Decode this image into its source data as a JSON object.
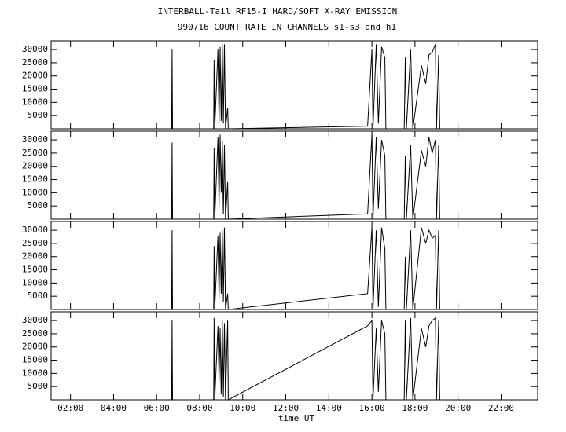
{
  "chart_data": [
    {
      "type": "line",
      "title": "INTERBALL-Tail RF15-I HARD/SOFT X-RAY EMISSION",
      "subtitle": "990716  COUNT RATE IN CHANNELS s1-s3 and h1",
      "color": "#000000",
      "xlim": [
        1.1,
        23.7
      ],
      "ylim": [
        0,
        33300
      ],
      "yticks": [
        5000,
        10000,
        15000,
        20000,
        25000,
        30000
      ],
      "x": [
        1.1,
        6.7,
        6.72,
        6.74,
        8.65,
        8.67,
        8.7,
        8.85,
        8.9,
        8.95,
        9.0,
        9.05,
        9.1,
        9.15,
        9.2,
        9.3,
        9.33,
        15.8,
        16.0,
        16.05,
        16.2,
        16.3,
        16.45,
        16.6,
        16.65,
        17.5,
        17.55,
        17.6,
        17.8,
        17.9,
        18.3,
        18.5,
        18.65,
        18.8,
        18.95,
        19.0,
        19.1,
        19.15,
        23.7
      ],
      "values": [
        0,
        0,
        30000,
        0,
        0,
        26000,
        0,
        30000,
        2000,
        31000,
        3000,
        32000,
        2000,
        32000,
        0,
        8000,
        0,
        1000,
        30000,
        0,
        32000,
        2000,
        31000,
        27000,
        0,
        0,
        27000,
        0,
        30000,
        0,
        24000,
        17000,
        28000,
        29000,
        32000,
        0,
        28000,
        0,
        0
      ]
    },
    {
      "type": "line",
      "color": "#000000",
      "xlim": [
        1.1,
        23.7
      ],
      "ylim": [
        0,
        33300
      ],
      "yticks": [
        5000,
        10000,
        15000,
        20000,
        25000,
        30000
      ],
      "x": [
        1.1,
        6.7,
        6.72,
        6.74,
        8.65,
        8.67,
        8.7,
        8.85,
        8.9,
        8.95,
        9.0,
        9.05,
        9.1,
        9.15,
        9.2,
        9.3,
        9.33,
        15.8,
        16.0,
        16.05,
        16.2,
        16.3,
        16.45,
        16.6,
        16.65,
        17.5,
        17.55,
        17.6,
        17.8,
        17.9,
        18.3,
        18.5,
        18.65,
        18.8,
        18.95,
        19.0,
        19.1,
        19.15,
        23.7
      ],
      "values": [
        0,
        0,
        29000,
        0,
        0,
        27000,
        0,
        31000,
        5000,
        32000,
        10000,
        30000,
        2000,
        28000,
        0,
        14000,
        0,
        2000,
        32000,
        0,
        31000,
        4000,
        30000,
        24000,
        0,
        0,
        24000,
        0,
        28000,
        0,
        26000,
        20000,
        31000,
        25000,
        30000,
        0,
        28000,
        0,
        0
      ]
    },
    {
      "type": "line",
      "color": "#000000",
      "xlim": [
        1.1,
        23.7
      ],
      "ylim": [
        0,
        33300
      ],
      "yticks": [
        5000,
        10000,
        15000,
        20000,
        25000,
        30000
      ],
      "x": [
        1.1,
        6.7,
        6.72,
        6.74,
        8.65,
        8.67,
        8.7,
        8.85,
        8.9,
        8.95,
        9.0,
        9.05,
        9.1,
        9.15,
        9.2,
        9.3,
        9.33,
        15.8,
        16.0,
        16.05,
        16.2,
        16.3,
        16.45,
        16.6,
        16.65,
        17.5,
        17.55,
        17.6,
        17.8,
        17.9,
        18.3,
        18.5,
        18.65,
        18.8,
        18.95,
        19.0,
        19.1,
        19.15,
        23.7
      ],
      "values": [
        0,
        0,
        30000,
        0,
        0,
        24000,
        0,
        28000,
        4000,
        29000,
        6000,
        30000,
        3000,
        31000,
        0,
        6000,
        0,
        6000,
        31000,
        0,
        30000,
        1000,
        31000,
        23000,
        0,
        0,
        20000,
        0,
        30000,
        0,
        31000,
        25000,
        30000,
        27000,
        28000,
        0,
        30000,
        0,
        0
      ]
    },
    {
      "type": "line",
      "color": "#000000",
      "xlim": [
        1.1,
        23.7
      ],
      "ylim": [
        0,
        33300
      ],
      "yticks": [
        5000,
        10000,
        15000,
        20000,
        25000,
        30000
      ],
      "xlabel": "time UT",
      "xticks": [
        {
          "value": 2,
          "label": "02:00"
        },
        {
          "value": 4,
          "label": "04:00"
        },
        {
          "value": 6,
          "label": "06:00"
        },
        {
          "value": 8,
          "label": "08:00"
        },
        {
          "value": 10,
          "label": "10:00"
        },
        {
          "value": 12,
          "label": "12:00"
        },
        {
          "value": 14,
          "label": "14:00"
        },
        {
          "value": 16,
          "label": "16:00"
        },
        {
          "value": 18,
          "label": "18:00"
        },
        {
          "value": 20,
          "label": "20:00"
        },
        {
          "value": 22,
          "label": "22:00"
        }
      ],
      "x": [
        1.1,
        6.7,
        6.72,
        6.74,
        8.65,
        8.67,
        8.7,
        8.85,
        8.9,
        8.95,
        9.0,
        9.05,
        9.1,
        9.15,
        9.2,
        9.3,
        9.33,
        15.8,
        16.0,
        16.05,
        16.2,
        16.3,
        16.45,
        16.6,
        16.65,
        17.5,
        17.55,
        17.6,
        17.8,
        17.9,
        18.3,
        18.5,
        18.65,
        18.8,
        18.95,
        19.0,
        19.1,
        19.15,
        23.7
      ],
      "values": [
        0,
        0,
        30000,
        0,
        0,
        31000,
        0,
        28000,
        7000,
        27000,
        2000,
        30000,
        1000,
        29000,
        0,
        30000,
        0,
        28000,
        30000,
        0,
        27000,
        3000,
        30000,
        25000,
        0,
        0,
        30000,
        0,
        31000,
        0,
        27000,
        20000,
        28000,
        30000,
        31000,
        0,
        30000,
        0,
        0
      ]
    }
  ]
}
